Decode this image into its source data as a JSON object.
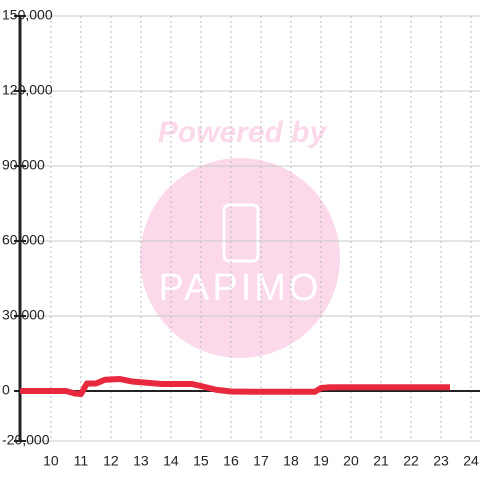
{
  "chart_data": {
    "type": "line",
    "watermark": {
      "text": "Powered by",
      "logo": "PAPIMO"
    },
    "xlim": [
      8.97,
      24.3
    ],
    "xticks": [
      10,
      11,
      12,
      13,
      14,
      15,
      16,
      17,
      18,
      19,
      20,
      21,
      22,
      23,
      24
    ],
    "ylim": [
      -20000,
      150000
    ],
    "yticks": [
      {
        "value": -20000,
        "label": "-20,000"
      },
      {
        "value": 0,
        "label": "0"
      },
      {
        "value": 30000,
        "label": "30,000"
      },
      {
        "value": 60000,
        "label": "60,000"
      },
      {
        "value": 90000,
        "label": "90,000"
      },
      {
        "value": 120000,
        "label": "120,000"
      },
      {
        "value": 150000,
        "label": "150,000"
      }
    ],
    "grid": true,
    "series": [
      {
        "color": "#e8283c",
        "x": [
          8.97,
          10.5,
          10.8,
          11.0,
          11.2,
          11.5,
          11.8,
          12.3,
          12.7,
          13.2,
          13.7,
          14.7,
          15.0,
          15.5,
          16.0,
          17.0,
          18.0,
          18.8,
          19.0,
          19.3,
          20.0,
          23.3
        ],
        "values": [
          0,
          0,
          -1000,
          -1200,
          3000,
          3000,
          4500,
          4800,
          3800,
          3300,
          2800,
          2800,
          2000,
          500,
          -200,
          -300,
          -300,
          -300,
          1200,
          1500,
          1500,
          1500
        ]
      }
    ]
  }
}
